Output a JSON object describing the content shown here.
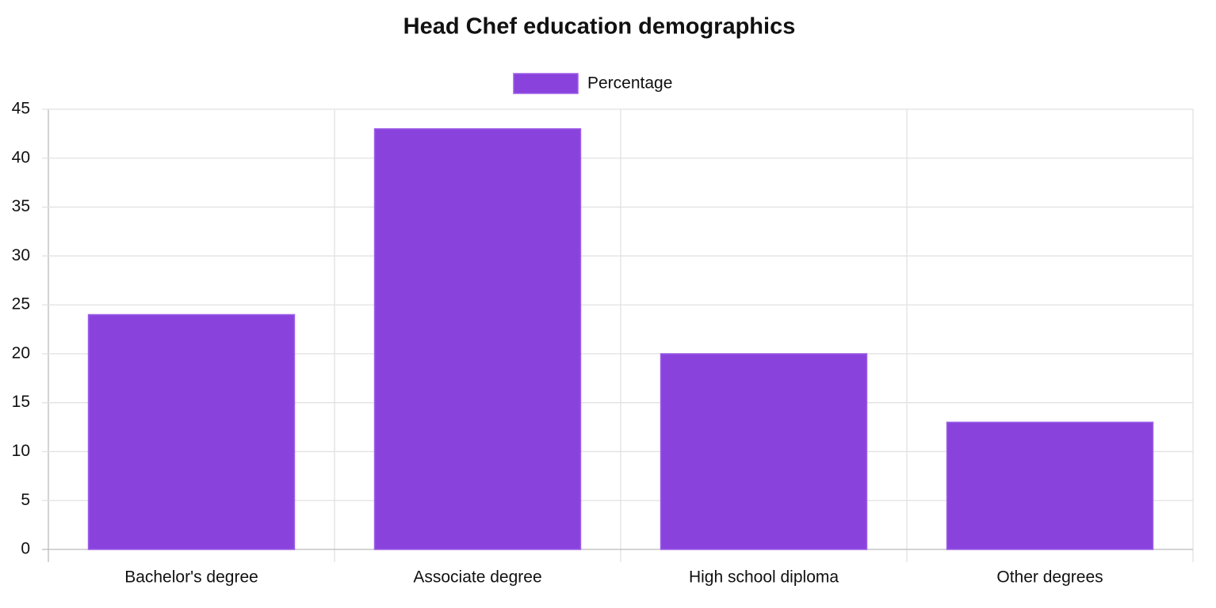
{
  "chart_data": {
    "type": "bar",
    "title": "Head Chef education demographics",
    "categories": [
      "Bachelor's degree",
      "Associate degree",
      "High school diploma",
      "Other degrees"
    ],
    "series": [
      {
        "name": "Percentage",
        "color": "#8a42dd",
        "values": [
          24,
          43,
          20,
          13
        ]
      }
    ],
    "ylim": [
      0,
      45
    ],
    "yticks": [
      0,
      5,
      10,
      15,
      20,
      25,
      30,
      35,
      40,
      45
    ],
    "grid": true,
    "legend": "top"
  }
}
